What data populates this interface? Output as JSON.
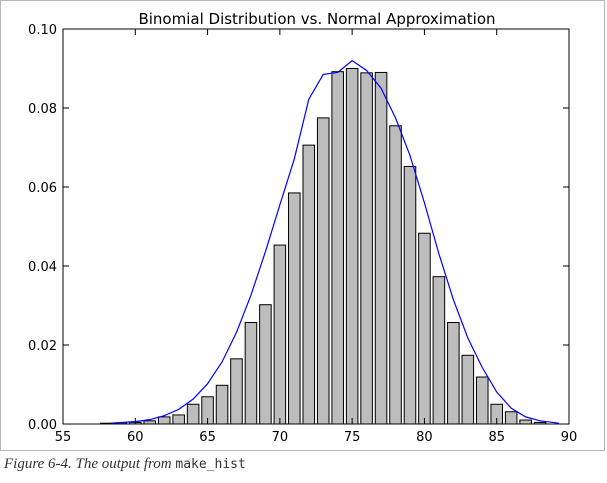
{
  "chart_data": {
    "type": "bar",
    "title": "Binomial Distribution vs. Normal Approximation",
    "xlabel": "",
    "ylabel": "",
    "xlim": [
      55,
      90
    ],
    "ylim": [
      0.0,
      0.1
    ],
    "x_ticks": [
      "55",
      "60",
      "65",
      "70",
      "75",
      "80",
      "85",
      "90"
    ],
    "y_ticks": [
      "0.00",
      "0.02",
      "0.04",
      "0.06",
      "0.08",
      "0.10"
    ],
    "grid": false,
    "colors": {
      "bars": "#bdbdbd",
      "bar_edge": "#000000",
      "line": "#0000ff"
    },
    "series": [
      {
        "type": "bar",
        "x": [
          58,
          59,
          60,
          61,
          62,
          63,
          64,
          65,
          66,
          67,
          68,
          69,
          70,
          71,
          72,
          73,
          74,
          75,
          76,
          77,
          78,
          79,
          80,
          81,
          82,
          83,
          84,
          85,
          86,
          87,
          88
        ],
        "values": [
          0.0002,
          0.0003,
          0.0004,
          0.0008,
          0.0018,
          0.0023,
          0.005,
          0.0069,
          0.0098,
          0.0165,
          0.0257,
          0.0302,
          0.0453,
          0.0585,
          0.0706,
          0.0775,
          0.0892,
          0.09,
          0.0889,
          0.089,
          0.0755,
          0.0652,
          0.0483,
          0.0373,
          0.0257,
          0.0174,
          0.0119,
          0.005,
          0.0031,
          0.001,
          0.0004
        ]
      },
      {
        "type": "line",
        "x": [
          58.3,
          60,
          61,
          62,
          63,
          64,
          65,
          66,
          67,
          68,
          69,
          70,
          71,
          72,
          73,
          74,
          75,
          76,
          77,
          78,
          79,
          80,
          81,
          82,
          83,
          84,
          85,
          86,
          87,
          88,
          89.3
        ],
        "values": [
          0.0002,
          0.0006,
          0.0011,
          0.0021,
          0.0037,
          0.0063,
          0.0102,
          0.0157,
          0.0232,
          0.0326,
          0.0436,
          0.0555,
          0.0671,
          0.0822,
          0.0885,
          0.089,
          0.092,
          0.0895,
          0.085,
          0.0775,
          0.068,
          0.056,
          0.0431,
          0.0315,
          0.0218,
          0.0143,
          0.0081,
          0.004,
          0.0018,
          0.0008,
          0.0002
        ]
      }
    ]
  },
  "caption": {
    "prefix": "Figure 6-4. The output from ",
    "code": "make_hist"
  }
}
